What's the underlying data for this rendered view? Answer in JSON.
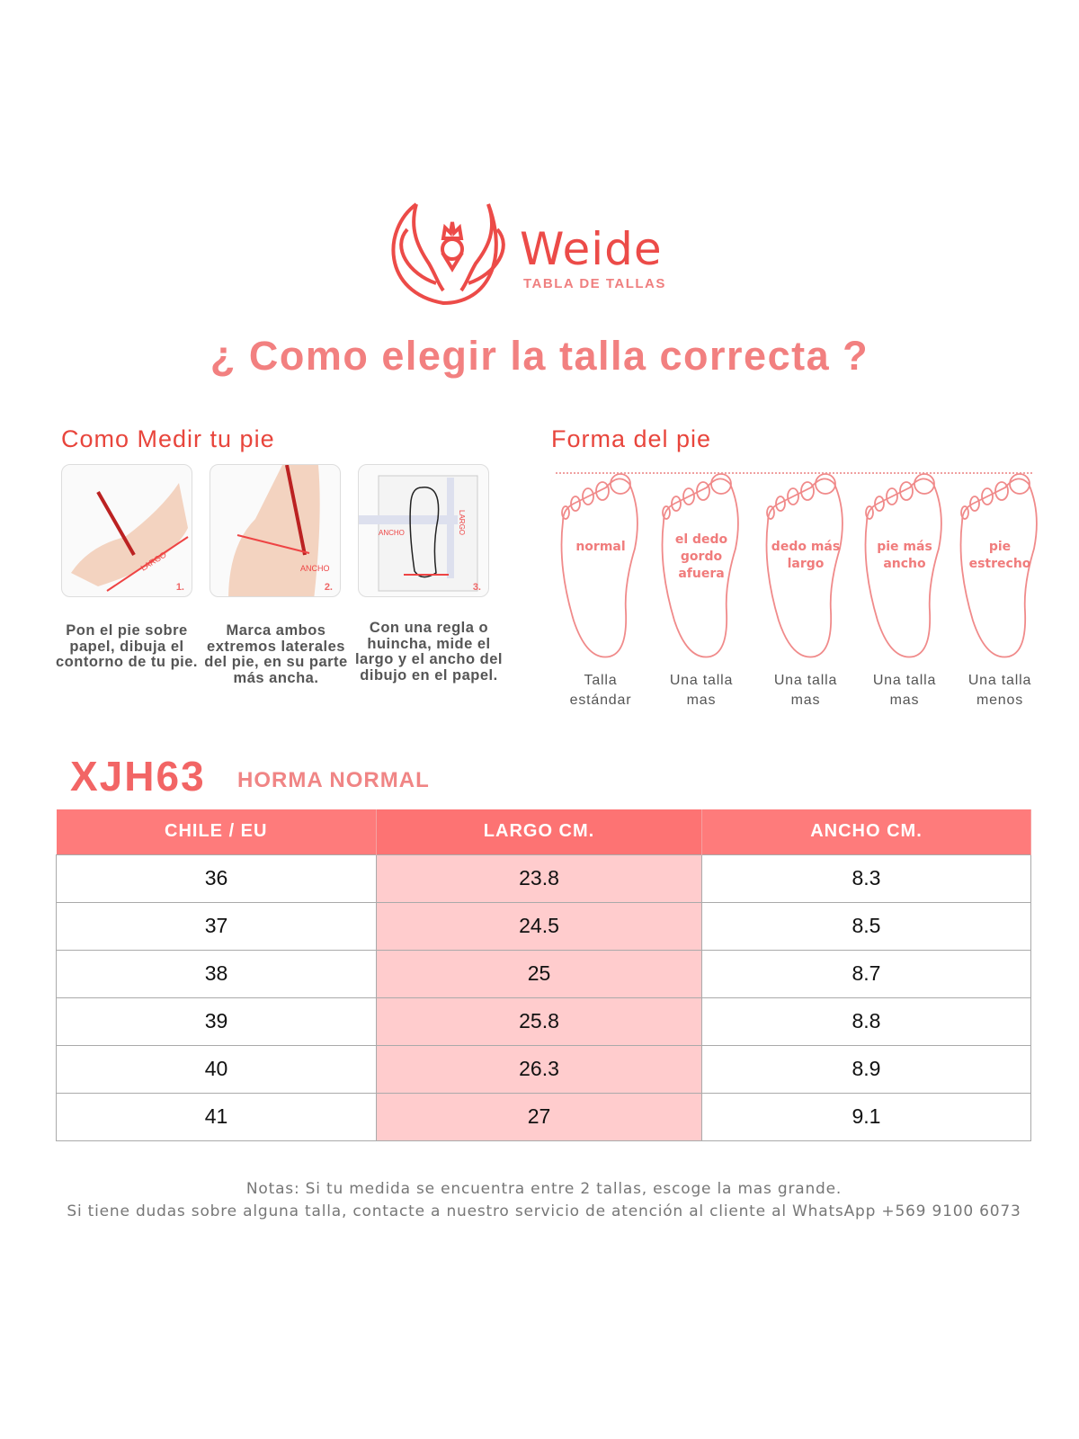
{
  "header": {
    "brand": "Weide",
    "subtitle": "TABLA DE TALLAS",
    "title": "¿ Como elegir la talla correcta ?"
  },
  "measure": {
    "heading": "Como Medir tu pie",
    "steps": [
      {
        "num": "1.",
        "tag": "LARGO",
        "caption": "Pon el pie sobre papel, dibuja el contorno de tu pie."
      },
      {
        "num": "2.",
        "tag": "ANCHO",
        "caption": "Marca ambos extremos laterales del pie, en su parte más ancha."
      },
      {
        "num": "3.",
        "tag": "ANCHO",
        "tag2": "LARGO",
        "caption": "Con una regla o huincha, mide el largo y el ancho del dibujo en el papel."
      }
    ]
  },
  "shapes": {
    "heading": "Forma del pie",
    "items": [
      {
        "label": [
          "normal"
        ],
        "advice": [
          "Talla",
          "estándar"
        ]
      },
      {
        "label": [
          "el dedo",
          "gordo",
          "afuera"
        ],
        "advice": [
          "Una talla",
          "mas"
        ]
      },
      {
        "label": [
          "dedo más",
          "largo"
        ],
        "advice": [
          "Una talla",
          "mas"
        ]
      },
      {
        "label": [
          "pie más",
          "ancho"
        ],
        "advice": [
          "Una talla",
          "mas"
        ]
      },
      {
        "label": [
          "pie",
          "estrecho"
        ],
        "advice": [
          "Una talla",
          "menos"
        ]
      }
    ]
  },
  "size_table": {
    "model": "XJH63",
    "fit": "HORMA NORMAL",
    "columns": [
      "CHILE / EU",
      "LARGO CM.",
      "ANCHO CM."
    ],
    "rows": [
      [
        "36",
        "23.8",
        "8.3"
      ],
      [
        "37",
        "24.5",
        "8.5"
      ],
      [
        "38",
        "25",
        "8.7"
      ],
      [
        "39",
        "25.8",
        "8.8"
      ],
      [
        "40",
        "26.3",
        "8.9"
      ],
      [
        "41",
        "27",
        "9.1"
      ]
    ]
  },
  "notes": [
    "Notas: Si tu medida se encuentra entre 2 tallas, escoge la mas grande.",
    "Si tiene dudas sobre alguna talla, contacte a nuestro servicio de atención al cliente al WhatsApp +569 9100 6073"
  ],
  "colors": {
    "accent": "#ec4b48",
    "header": "#fe7b7b",
    "highlight": "#ffcccd",
    "title": "#f28080"
  }
}
